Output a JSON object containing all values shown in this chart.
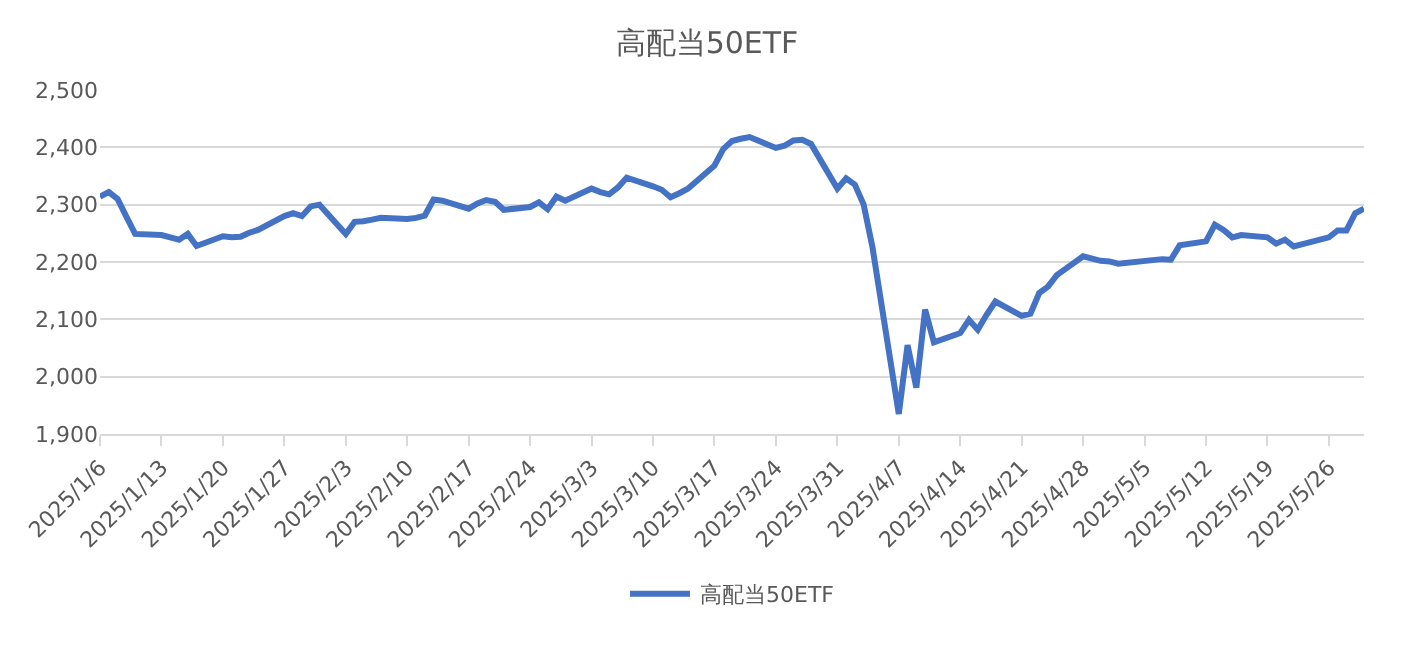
{
  "chart_data": {
    "type": "line",
    "title": "高配当50ETF",
    "x": [
      "2025-01-06",
      "2025-01-07",
      "2025-01-08",
      "2025-01-09",
      "2025-01-10",
      "2025-01-13",
      "2025-01-14",
      "2025-01-15",
      "2025-01-16",
      "2025-01-17",
      "2025-01-20",
      "2025-01-21",
      "2025-01-22",
      "2025-01-23",
      "2025-01-24",
      "2025-01-27",
      "2025-01-28",
      "2025-01-29",
      "2025-01-30",
      "2025-01-31",
      "2025-02-03",
      "2025-02-04",
      "2025-02-05",
      "2025-02-06",
      "2025-02-07",
      "2025-02-10",
      "2025-02-11",
      "2025-02-12",
      "2025-02-13",
      "2025-02-14",
      "2025-02-17",
      "2025-02-18",
      "2025-02-19",
      "2025-02-20",
      "2025-02-21",
      "2025-02-24",
      "2025-02-25",
      "2025-02-26",
      "2025-02-27",
      "2025-02-28",
      "2025-03-03",
      "2025-03-04",
      "2025-03-05",
      "2025-03-06",
      "2025-03-07",
      "2025-03-10",
      "2025-03-11",
      "2025-03-12",
      "2025-03-13",
      "2025-03-14",
      "2025-03-17",
      "2025-03-18",
      "2025-03-19",
      "2025-03-20",
      "2025-03-21",
      "2025-03-24",
      "2025-03-25",
      "2025-03-26",
      "2025-03-27",
      "2025-03-28",
      "2025-03-31",
      "2025-04-01",
      "2025-04-02",
      "2025-04-03",
      "2025-04-04",
      "2025-04-07",
      "2025-04-08",
      "2025-04-09",
      "2025-04-10",
      "2025-04-11",
      "2025-04-14",
      "2025-04-15",
      "2025-04-16",
      "2025-04-17",
      "2025-04-18",
      "2025-04-21",
      "2025-04-22",
      "2025-04-23",
      "2025-04-24",
      "2025-04-25",
      "2025-04-28",
      "2025-04-30",
      "2025-05-01",
      "2025-05-02",
      "2025-05-07",
      "2025-05-08",
      "2025-05-09",
      "2025-05-12",
      "2025-05-13",
      "2025-05-14",
      "2025-05-15",
      "2025-05-16",
      "2025-05-19",
      "2025-05-20",
      "2025-05-21",
      "2025-05-22",
      "2025-05-23",
      "2025-05-26",
      "2025-05-27",
      "2025-05-28",
      "2025-05-29",
      "2025-05-30"
    ],
    "series": [
      {
        "name": "高配当50ETF",
        "color": "#4472c4",
        "values": [
          2314,
          2322,
          2310,
          2279,
          2249,
          2247,
          2243,
          2239,
          2249,
          2228,
          2245,
          2243,
          2244,
          2251,
          2256,
          2280,
          2285,
          2280,
          2297,
          2300,
          2249,
          2270,
          2271,
          2274,
          2277,
          2275,
          2277,
          2281,
          2309,
          2307,
          2293,
          2302,
          2308,
          2305,
          2291,
          2296,
          2304,
          2292,
          2314,
          2307,
          2328,
          2322,
          2318,
          2330,
          2347,
          2332,
          2326,
          2313,
          2320,
          2328,
          2368,
          2397,
          2411,
          2415,
          2418,
          2399,
          2403,
          2412,
          2413,
          2406,
          2328,
          2346,
          2335,
          2300,
          2226,
          1935,
          2055,
          1981,
          2117,
          2060,
          2076,
          2099,
          2082,
          2108,
          2131,
          2106,
          2110,
          2146,
          2157,
          2177,
          2210,
          2202,
          2201,
          2197,
          2205,
          2204,
          2229,
          2236,
          2265,
          2256,
          2243,
          2247,
          2243,
          2232,
          2239,
          2227,
          2231,
          2243,
          2255,
          2255,
          2285,
          2293
        ]
      }
    ],
    "xlim": [
      "2025-01-06",
      "2025-05-30"
    ],
    "xticks": [
      {
        "value": "2025-01-06",
        "label": "2025/1/6"
      },
      {
        "value": "2025-01-13",
        "label": "2025/1/13"
      },
      {
        "value": "2025-01-20",
        "label": "2025/1/20"
      },
      {
        "value": "2025-01-27",
        "label": "2025/1/27"
      },
      {
        "value": "2025-02-03",
        "label": "2025/2/3"
      },
      {
        "value": "2025-02-10",
        "label": "2025/2/10"
      },
      {
        "value": "2025-02-17",
        "label": "2025/2/17"
      },
      {
        "value": "2025-02-24",
        "label": "2025/2/24"
      },
      {
        "value": "2025-03-03",
        "label": "2025/3/3"
      },
      {
        "value": "2025-03-10",
        "label": "2025/3/10"
      },
      {
        "value": "2025-03-17",
        "label": "2025/3/17"
      },
      {
        "value": "2025-03-24",
        "label": "2025/3/24"
      },
      {
        "value": "2025-03-31",
        "label": "2025/3/31"
      },
      {
        "value": "2025-04-07",
        "label": "2025/4/7"
      },
      {
        "value": "2025-04-14",
        "label": "2025/4/14"
      },
      {
        "value": "2025-04-21",
        "label": "2025/4/21"
      },
      {
        "value": "2025-04-28",
        "label": "2025/4/28"
      },
      {
        "value": "2025-05-05",
        "label": "2025/5/5"
      },
      {
        "value": "2025-05-12",
        "label": "2025/5/12"
      },
      {
        "value": "2025-05-19",
        "label": "2025/5/19"
      },
      {
        "value": "2025-05-26",
        "label": "2025/5/26"
      }
    ],
    "ylim": [
      1900,
      2500
    ],
    "yticks": [
      {
        "value": 1900,
        "label": "1,900"
      },
      {
        "value": 2000,
        "label": "2,000"
      },
      {
        "value": 2100,
        "label": "2,100"
      },
      {
        "value": 2200,
        "label": "2,200"
      },
      {
        "value": 2300,
        "label": "2,300"
      },
      {
        "value": 2400,
        "label": "2,400"
      },
      {
        "value": 2500,
        "label": "2,500"
      }
    ],
    "grid": "y",
    "legend": "bottom",
    "marker": "none",
    "line_style": "solid"
  }
}
